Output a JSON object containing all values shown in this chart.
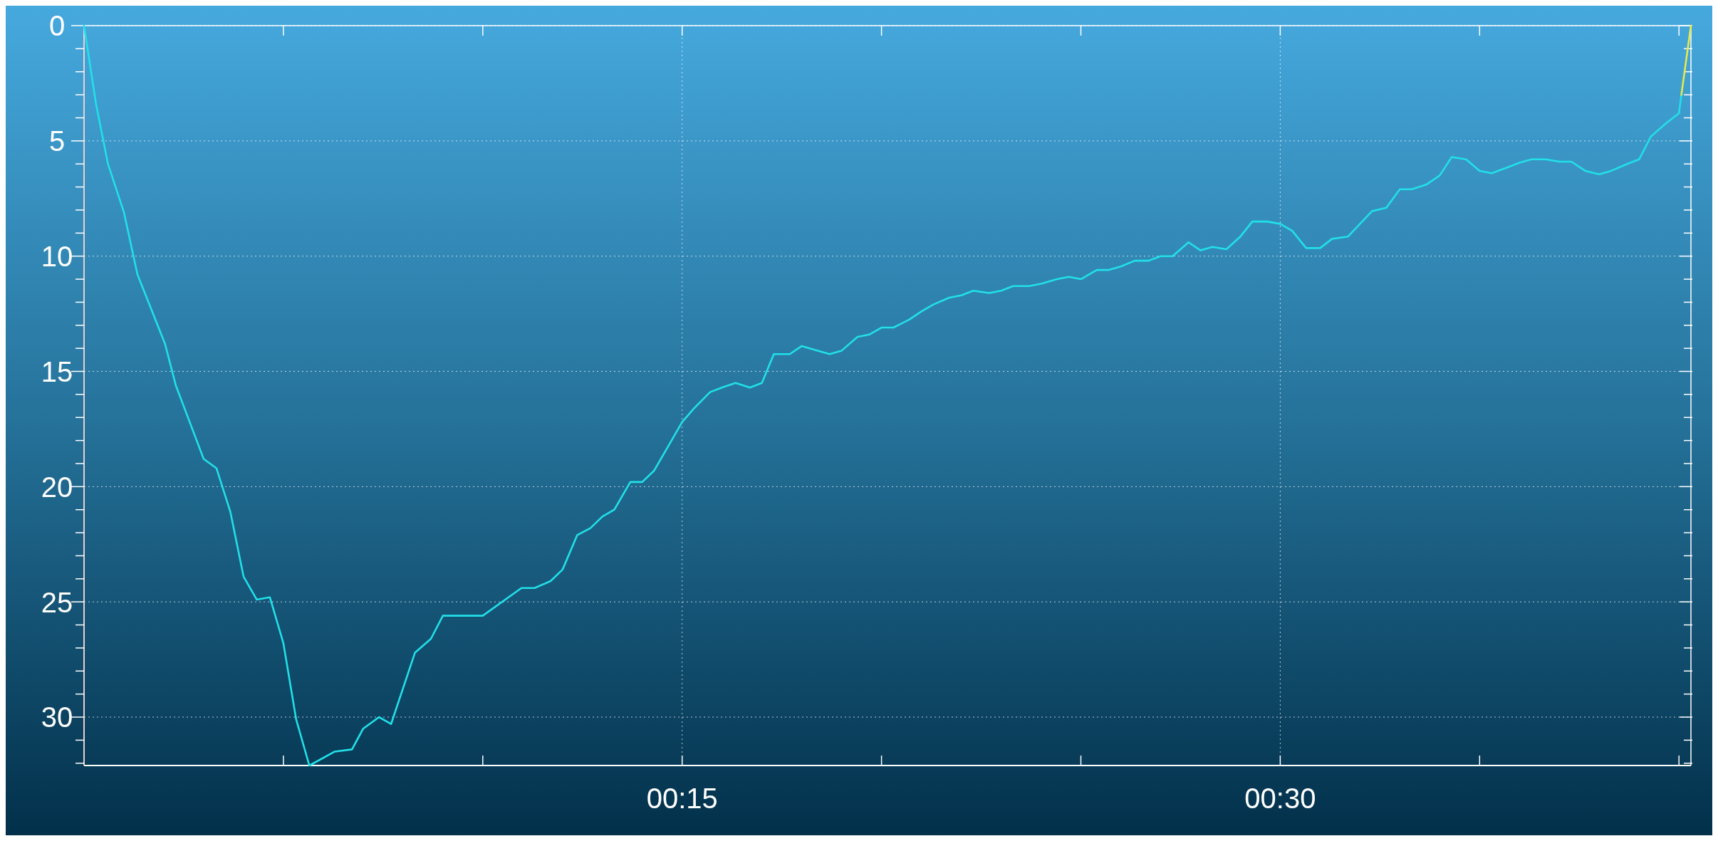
{
  "chart_data": {
    "type": "line",
    "xlim": [
      0,
      40.3
    ],
    "ylim": [
      32.1,
      0
    ],
    "xticks": [
      {
        "value": 5,
        "label": null
      },
      {
        "value": 10,
        "label": null
      },
      {
        "value": 15,
        "label": "00:15"
      },
      {
        "value": 20,
        "label": null
      },
      {
        "value": 25,
        "label": null
      },
      {
        "value": 30,
        "label": "00:30"
      },
      {
        "value": 35,
        "label": null
      },
      {
        "value": 40,
        "label": null
      }
    ],
    "yticks": [
      0,
      {
        "value": 1,
        "label": null
      },
      {
        "value": 2,
        "label": null
      },
      {
        "value": 3,
        "label": null
      },
      {
        "value": 4,
        "label": null
      },
      5,
      {
        "value": 6,
        "label": null
      },
      {
        "value": 7,
        "label": null
      },
      {
        "value": 8,
        "label": null
      },
      {
        "value": 9,
        "label": null
      },
      10,
      {
        "value": 11,
        "label": null
      },
      {
        "value": 12,
        "label": null
      },
      {
        "value": 13,
        "label": null
      },
      {
        "value": 14,
        "label": null
      },
      15,
      {
        "value": 16,
        "label": null
      },
      {
        "value": 17,
        "label": null
      },
      {
        "value": 18,
        "label": null
      },
      {
        "value": 19,
        "label": null
      },
      20,
      {
        "value": 21,
        "label": null
      },
      {
        "value": 22,
        "label": null
      },
      {
        "value": 23,
        "label": null
      },
      {
        "value": 24,
        "label": null
      },
      25,
      {
        "value": 26,
        "label": null
      },
      {
        "value": 27,
        "label": null
      },
      {
        "value": 28,
        "label": null
      },
      {
        "value": 29,
        "label": null
      },
      30,
      {
        "value": 31,
        "label": null
      },
      {
        "value": 32,
        "label": null
      }
    ],
    "grid": true,
    "line_style": "solid",
    "marker": "none",
    "series": [
      {
        "color": "#22e0e8",
        "x": [
          0,
          0.3,
          0.6,
          1.0,
          1.34,
          2.03,
          2.3,
          3.0,
          3.32,
          3.67,
          4.0,
          4.33,
          4.66,
          5.0,
          5.32,
          5.65,
          6.28,
          6.72,
          7.0,
          7.4,
          7.7,
          8.3,
          8.7,
          9.0,
          10.0,
          10.97,
          11.3,
          11.7,
          12.0,
          12.37,
          12.7,
          13.0,
          13.3,
          13.7,
          14.0,
          14.3,
          14.7,
          15.0,
          15.3,
          15.7,
          16.0,
          16.34,
          16.7,
          17.0,
          17.3,
          17.7,
          18.0,
          18.4,
          18.7,
          19.0,
          19.4,
          19.7,
          20.0,
          20.3,
          20.7,
          21.0,
          21.3,
          21.7,
          22.0,
          22.3,
          22.7,
          23.0,
          23.3,
          23.7,
          24.0,
          24.4,
          24.7,
          25.0,
          25.4,
          25.7,
          26.0,
          26.35,
          26.7,
          27.0,
          27.3,
          27.7,
          28.0,
          28.3,
          28.65,
          29.0,
          29.3,
          29.67,
          30.0,
          30.3,
          30.65,
          31.0,
          31.3,
          31.7,
          32.0,
          32.3,
          32.66,
          33.0,
          33.3,
          33.66,
          34.0,
          34.3,
          34.66,
          35.0,
          35.3,
          35.7,
          36.0,
          36.3,
          36.66,
          37.0,
          37.3,
          37.65,
          38.0,
          38.3,
          38.7,
          39.0,
          39.3,
          39.7,
          40.0,
          40.06
        ],
        "values": [
          0,
          3.4,
          6.0,
          8.1,
          10.8,
          13.8,
          15.6,
          18.8,
          19.2,
          21.1,
          23.9,
          24.9,
          24.8,
          26.8,
          30.1,
          32.1,
          31.5,
          31.4,
          30.5,
          30.0,
          30.3,
          27.2,
          26.6,
          25.6,
          25.6,
          24.4,
          24.4,
          24.1,
          23.6,
          22.1,
          21.8,
          21.3,
          21.0,
          19.8,
          19.8,
          19.3,
          18.1,
          17.2,
          16.6,
          15.9,
          15.7,
          15.5,
          15.7,
          15.5,
          14.25,
          14.25,
          13.9,
          14.1,
          14.25,
          14.1,
          13.5,
          13.4,
          13.1,
          13.1,
          12.75,
          12.4,
          12.1,
          11.8,
          11.7,
          11.5,
          11.6,
          11.5,
          11.3,
          11.3,
          11.2,
          11.0,
          10.9,
          11.0,
          10.6,
          10.6,
          10.45,
          10.2,
          10.2,
          10.0,
          10.0,
          9.4,
          9.75,
          9.6,
          9.7,
          9.15,
          8.5,
          8.5,
          8.6,
          8.9,
          9.65,
          9.65,
          9.25,
          9.15,
          8.6,
          8.05,
          7.9,
          7.1,
          7.1,
          6.9,
          6.5,
          5.7,
          5.8,
          6.3,
          6.4,
          6.15,
          5.95,
          5.8,
          5.8,
          5.9,
          5.9,
          6.3,
          6.45,
          6.3,
          6.0,
          5.8,
          4.8,
          4.2,
          3.8,
          3.0
        ]
      },
      {
        "color": "#e8e84a",
        "x": [
          40.06,
          40.3
        ],
        "values": [
          3.0,
          0
        ]
      }
    ]
  }
}
